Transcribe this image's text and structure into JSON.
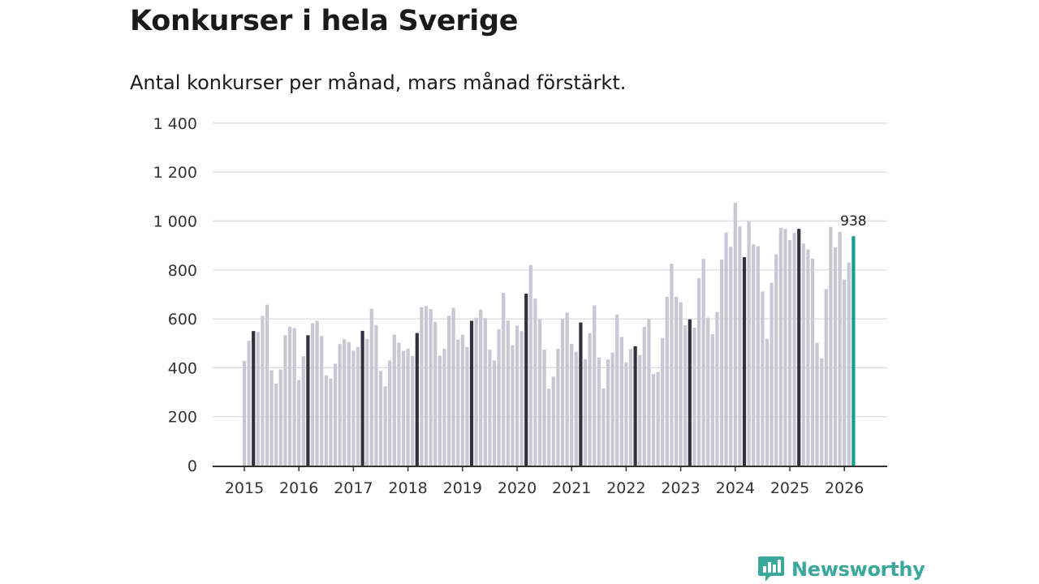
{
  "colors": {
    "bar": "#c9c7d3",
    "march_bar": "#33313f",
    "highlight_bar": "#139e94",
    "grid": "#dcdcdc",
    "axis": "#333333",
    "brand": "#3aa89d"
  },
  "brand": {
    "name": "Newsworthy",
    "icon": "newsworthy-chart-bubble-icon"
  },
  "chart_data": {
    "type": "bar",
    "title": "Konkurser i hela Sverige",
    "subtitle": "Antal konkurser per månad, mars månad förstärkt.",
    "xlabel": "",
    "ylabel": "",
    "ylim": [
      0,
      1400
    ],
    "yticks": [
      0,
      200,
      400,
      600,
      800,
      1000,
      1200,
      1400
    ],
    "ytick_labels": [
      "0",
      "200",
      "400",
      "600",
      "800",
      "1 000",
      "1 200",
      "1 400"
    ],
    "x_tick_labels": [
      "2015",
      "2016",
      "2017",
      "2018",
      "2019",
      "2020",
      "2021",
      "2022",
      "2023",
      "2024",
      "2025",
      "2026"
    ],
    "start": "2015-01",
    "grid": true,
    "highlight_month_label": "mars",
    "last_value_label": "938",
    "values": [
      428,
      510,
      550,
      546,
      612,
      658,
      390,
      335,
      393,
      533,
      568,
      562,
      350,
      447,
      533,
      582,
      592,
      530,
      369,
      356,
      417,
      497,
      517,
      505,
      470,
      485,
      551,
      518,
      642,
      575,
      387,
      324,
      430,
      536,
      503,
      469,
      478,
      448,
      542,
      648,
      652,
      640,
      588,
      450,
      478,
      612,
      645,
      515,
      535,
      485,
      592,
      605,
      638,
      603,
      474,
      430,
      558,
      706,
      593,
      492,
      572,
      550,
      703,
      820,
      683,
      598,
      474,
      314,
      364,
      478,
      602,
      625,
      498,
      465,
      585,
      435,
      542,
      655,
      442,
      315,
      434,
      462,
      618,
      526,
      422,
      476,
      488,
      452,
      567,
      600,
      374,
      383,
      522,
      690,
      825,
      690,
      668,
      574,
      598,
      564,
      766,
      845,
      605,
      537,
      628,
      842,
      953,
      895,
      1075,
      978,
      852,
      1000,
      905,
      897,
      712,
      518,
      748,
      864,
      972,
      968,
      922,
      951,
      968,
      908,
      884,
      846,
      502,
      438,
      722,
      976,
      893,
      955,
      761,
      830,
      938
    ]
  }
}
